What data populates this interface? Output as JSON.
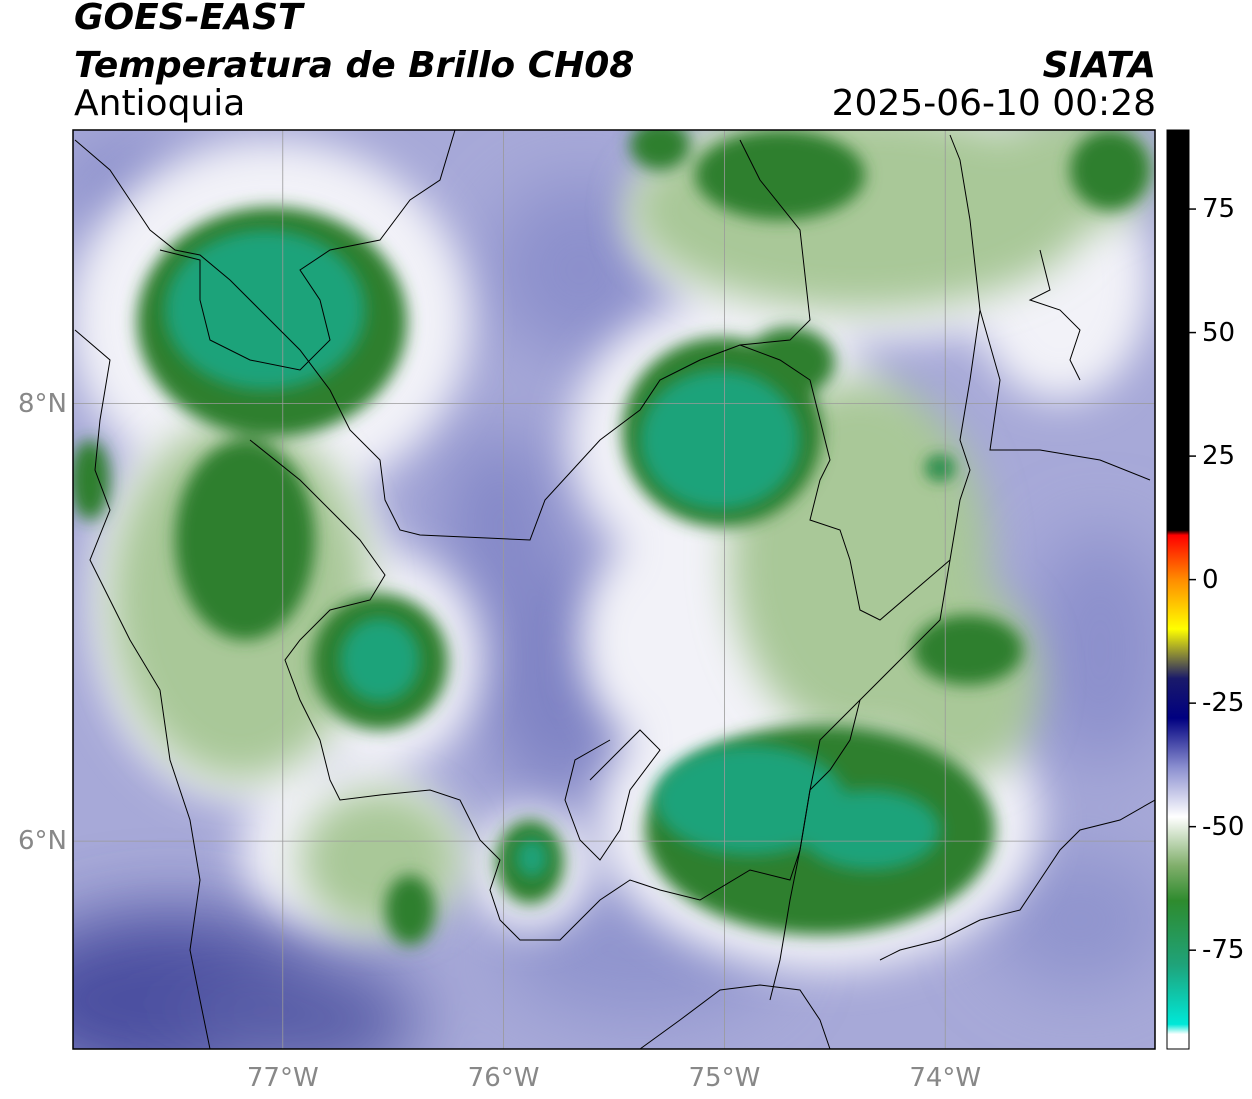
{
  "header": {
    "satellite": "GOES-EAST",
    "product": "Temperatura de Brillo CH08",
    "region": "Antioquia",
    "agency": "SIATA",
    "timestamp": "2025-06-10 00:28"
  },
  "map": {
    "lon_range": [
      -77.95,
      -73.05
    ],
    "lat_range": [
      5.05,
      9.25
    ],
    "lon_ticks": [
      {
        "value": -77,
        "label": "77°W"
      },
      {
        "value": -76,
        "label": "76°W"
      },
      {
        "value": -75,
        "label": "75°W"
      },
      {
        "value": -74,
        "label": "74°W"
      }
    ],
    "lat_ticks": [
      {
        "value": 8,
        "label": "8°N"
      },
      {
        "value": 6,
        "label": "6°N"
      }
    ],
    "gridlines": true,
    "cold_cloud_color": "#1e9a62",
    "clear_sky_color": "#6f73b8"
  },
  "colorbar": {
    "range": [
      -95,
      91
    ],
    "ticks": [
      {
        "value": 75,
        "label": "75"
      },
      {
        "value": 50,
        "label": "50"
      },
      {
        "value": 25,
        "label": "25"
      },
      {
        "value": 0,
        "label": "0"
      },
      {
        "value": -25,
        "label": "-25"
      },
      {
        "value": -50,
        "label": "-50"
      },
      {
        "value": -75,
        "label": "-75"
      }
    ],
    "stops": [
      {
        "value": 91,
        "color": "#000000"
      },
      {
        "value": 10,
        "color": "#000000"
      },
      {
        "value": 9,
        "color": "#ff0000"
      },
      {
        "value": 0,
        "color": "#ff8c00"
      },
      {
        "value": -10,
        "color": "#ffff00"
      },
      {
        "value": -20,
        "color": "#1a1a6a"
      },
      {
        "value": -28,
        "color": "#000080"
      },
      {
        "value": -38,
        "color": "#8b8fd0"
      },
      {
        "value": -48,
        "color": "#ffffff"
      },
      {
        "value": -58,
        "color": "#7fae6a"
      },
      {
        "value": -65,
        "color": "#2e8b2e"
      },
      {
        "value": -78,
        "color": "#1fa37a"
      },
      {
        "value": -90,
        "color": "#00e8d8"
      },
      {
        "value": -92,
        "color": "#ffffff"
      },
      {
        "value": -95,
        "color": "#ffffff"
      }
    ]
  }
}
